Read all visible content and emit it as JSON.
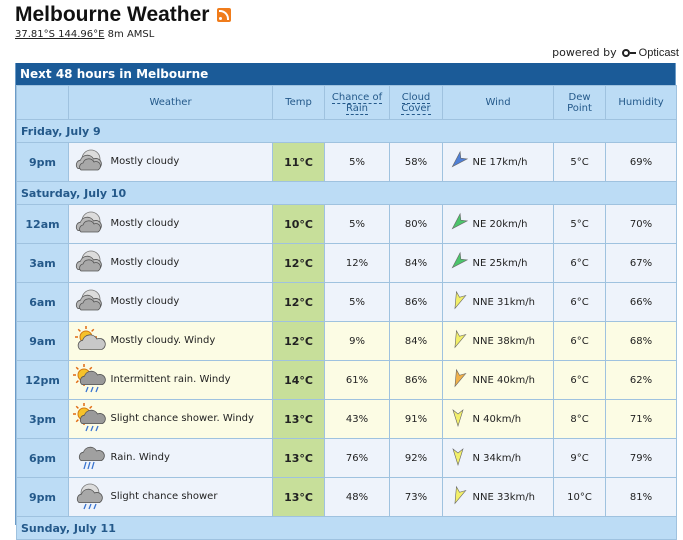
{
  "header": {
    "title": "Melbourne Weather",
    "coords": "37.81°S 144.96°E",
    "elevation": "8m AMSL",
    "powered_label": "powered by",
    "brand": "Opticast"
  },
  "panel": {
    "title": "Next 48 hours in Melbourne",
    "columns": {
      "weather": "Weather",
      "temp": "Temp",
      "rain1": "Chance of",
      "rain2": "Rain",
      "cloud1": "Cloud",
      "cloud2": "Cover",
      "wind": "Wind",
      "dew1": "Dew",
      "dew2": "Point",
      "humidity": "Humidity"
    }
  },
  "days": [
    {
      "label": "Friday, July 9",
      "rows": [
        {
          "time": "9pm",
          "icon": "cloudy-night-icon",
          "desc": "Mostly cloudy",
          "temp": "11°C",
          "rain": "5%",
          "cloud": "58%",
          "wind_color": "#4f7fd6",
          "wind_dir": "NE",
          "wind": "NE 17km/h",
          "dew": "5°C",
          "humidity": "69%",
          "warm": false
        }
      ]
    },
    {
      "label": "Saturday, July 10",
      "rows": [
        {
          "time": "12am",
          "icon": "cloudy-night-icon",
          "desc": "Mostly cloudy",
          "temp": "10°C",
          "rain": "5%",
          "cloud": "80%",
          "wind_color": "#4cc46b",
          "wind_dir": "NE",
          "wind": "NE 20km/h",
          "dew": "5°C",
          "humidity": "70%",
          "warm": false
        },
        {
          "time": "3am",
          "icon": "cloudy-night-icon",
          "desc": "Mostly cloudy",
          "temp": "12°C",
          "rain": "12%",
          "cloud": "84%",
          "wind_color": "#4cc46b",
          "wind_dir": "NE",
          "wind": "NE 25km/h",
          "dew": "6°C",
          "humidity": "67%",
          "warm": false
        },
        {
          "time": "6am",
          "icon": "cloudy-night-icon",
          "desc": "Mostly cloudy",
          "temp": "12°C",
          "rain": "5%",
          "cloud": "86%",
          "wind_color": "#f2ef6a",
          "wind_dir": "NNE",
          "wind": "NNE 31km/h",
          "dew": "6°C",
          "humidity": "66%",
          "warm": false
        },
        {
          "time": "9am",
          "icon": "cloudy-day-icon",
          "desc": "Mostly cloudy. Windy",
          "temp": "12°C",
          "rain": "9%",
          "cloud": "84%",
          "wind_color": "#f2ef6a",
          "wind_dir": "NNE",
          "wind": "NNE 38km/h",
          "dew": "6°C",
          "humidity": "68%",
          "warm": true
        },
        {
          "time": "12pm",
          "icon": "sun-rain-icon",
          "desc": "Intermittent rain. Windy",
          "temp": "14°C",
          "rain": "61%",
          "cloud": "86%",
          "wind_color": "#f0b14a",
          "wind_dir": "NNE",
          "wind": "NNE 40km/h",
          "dew": "6°C",
          "humidity": "62%",
          "warm": true
        },
        {
          "time": "3pm",
          "icon": "sun-shower-icon",
          "desc": "Slight chance shower. Windy",
          "temp": "13°C",
          "rain": "43%",
          "cloud": "91%",
          "wind_color": "#f2ef6a",
          "wind_dir": "N",
          "wind": "N 40km/h",
          "dew": "8°C",
          "humidity": "71%",
          "warm": true
        },
        {
          "time": "6pm",
          "icon": "rain-icon",
          "desc": "Rain. Windy",
          "temp": "13°C",
          "rain": "76%",
          "cloud": "92%",
          "wind_color": "#f2ef6a",
          "wind_dir": "N",
          "wind": "N 34km/h",
          "dew": "9°C",
          "humidity": "79%",
          "warm": false
        },
        {
          "time": "9pm",
          "icon": "moon-shower-icon",
          "desc": "Slight chance shower",
          "temp": "13°C",
          "rain": "48%",
          "cloud": "73%",
          "wind_color": "#f2ef6a",
          "wind_dir": "NNE",
          "wind": "NNE 33km/h",
          "dew": "10°C",
          "humidity": "81%",
          "warm": false
        }
      ]
    },
    {
      "label": "Sunday, July 11",
      "rows": []
    }
  ]
}
